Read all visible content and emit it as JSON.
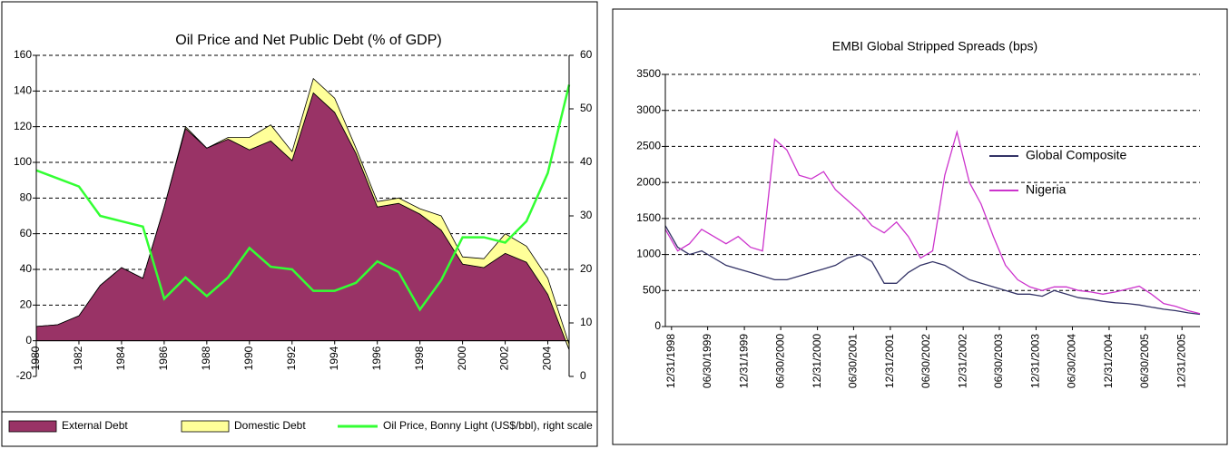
{
  "chart_data": [
    {
      "type": "area",
      "stacked": true,
      "title": "Oil Price and Net Public Debt (% of GDP)",
      "x": [
        1980,
        1981,
        1982,
        1983,
        1984,
        1985,
        1986,
        1987,
        1988,
        1989,
        1990,
        1991,
        1992,
        1993,
        1994,
        1995,
        1996,
        1997,
        1998,
        1999,
        2000,
        2001,
        2002,
        2003,
        2004,
        2005
      ],
      "xlim": [
        1980,
        2005
      ],
      "xticks": [
        1980,
        1982,
        1984,
        1986,
        1988,
        1990,
        1992,
        1994,
        1996,
        1998,
        2000,
        2002,
        2004
      ],
      "ylim": [
        -20,
        160
      ],
      "yticks": [
        -20,
        0,
        20,
        40,
        60,
        80,
        100,
        120,
        140,
        160
      ],
      "y2lim": [
        0,
        60
      ],
      "y2ticks": [
        0,
        10,
        20,
        30,
        40,
        50,
        60
      ],
      "grid": true,
      "legend": "bottom",
      "series": [
        {
          "name": "External Debt",
          "color": "#993366",
          "values": [
            8,
            9,
            14,
            31,
            41,
            35,
            75,
            119,
            108,
            113,
            107,
            112,
            101,
            139,
            128,
            105,
            75,
            77,
            71,
            62,
            43,
            41,
            49,
            44,
            26,
            -5
          ]
        },
        {
          "name": "Domestic Debt",
          "color": "#ffff99",
          "values": [
            0,
            0,
            0,
            0,
            0,
            0,
            0,
            1,
            0,
            1,
            7,
            9,
            5,
            8,
            8,
            3,
            3,
            3,
            3,
            8,
            4,
            5,
            11,
            9,
            9,
            3
          ]
        },
        {
          "name": "Oil Price, Bonny Light (US$/bbl), right scale",
          "color": "#33ff33",
          "kind": "line",
          "axis": "y2",
          "values": [
            38.5,
            37,
            35.5,
            30,
            29,
            28,
            14.5,
            18.5,
            15,
            18.5,
            24,
            20.5,
            20,
            16,
            16,
            17.5,
            21.5,
            19.5,
            12.5,
            18,
            26,
            26,
            25,
            29,
            38,
            54.5
          ]
        }
      ]
    },
    {
      "type": "line",
      "title": "EMBI Global Stripped Spreads (bps)",
      "x": [
        "11/30/1998",
        "01/31/1999",
        "03/31/1999",
        "05/31/1999",
        "07/31/1999",
        "09/30/1999",
        "11/30/1999",
        "01/31/2000",
        "03/31/2000",
        "05/31/2000",
        "07/31/2000",
        "09/30/2000",
        "11/30/2000",
        "01/31/2001",
        "03/31/2001",
        "05/31/2001",
        "07/31/2001",
        "09/30/2001",
        "11/30/2001",
        "01/31/2002",
        "03/31/2002",
        "05/31/2002",
        "07/31/2002",
        "09/30/2002",
        "11/30/2002",
        "01/31/2003",
        "03/31/2003",
        "05/31/2003",
        "07/31/2003",
        "09/30/2003",
        "11/30/2003",
        "01/31/2004",
        "03/31/2004",
        "05/31/2004",
        "07/31/2004",
        "09/30/2004",
        "11/30/2004",
        "01/31/2005",
        "03/31/2005",
        "05/31/2005",
        "07/31/2005",
        "09/30/2005",
        "11/30/2005",
        "01/31/2006",
        "03/31/2006"
      ],
      "xlim": [
        "11/30/1998",
        "03/31/2006"
      ],
      "xticks": [
        "12/31/1998",
        "06/30/1999",
        "12/31/1999",
        "06/30/2000",
        "12/31/2000",
        "06/30/2001",
        "12/31/2001",
        "06/30/2002",
        "12/31/2002",
        "06/30/2003",
        "12/31/2003",
        "06/30/2004",
        "12/31/2004",
        "06/30/2005",
        "12/31/2005"
      ],
      "ylim": [
        0,
        3500
      ],
      "yticks": [
        0,
        500,
        1000,
        1500,
        2000,
        2500,
        3000,
        3500
      ],
      "grid": true,
      "legend": "right",
      "series": [
        {
          "name": "Global Composite",
          "color": "#333366",
          "values": [
            1400,
            1100,
            1000,
            1050,
            950,
            850,
            800,
            750,
            700,
            650,
            650,
            700,
            750,
            800,
            850,
            950,
            1000,
            900,
            600,
            600,
            750,
            850,
            900,
            850,
            750,
            650,
            600,
            550,
            500,
            450,
            450,
            420,
            500,
            450,
            400,
            380,
            350,
            330,
            320,
            300,
            270,
            240,
            220,
            190,
            170
          ]
        },
        {
          "name": "Nigeria",
          "color": "#cc33cc",
          "values": [
            1350,
            1050,
            1150,
            1350,
            1250,
            1150,
            1250,
            1100,
            1050,
            2600,
            2450,
            2100,
            2050,
            2150,
            1900,
            1750,
            1600,
            1400,
            1300,
            1450,
            1250,
            950,
            1050,
            2100,
            2700,
            2000,
            1700,
            1250,
            850,
            650,
            550,
            500,
            550,
            550,
            500,
            480,
            450,
            480,
            520,
            560,
            450,
            320,
            280,
            220,
            180
          ]
        }
      ]
    }
  ]
}
